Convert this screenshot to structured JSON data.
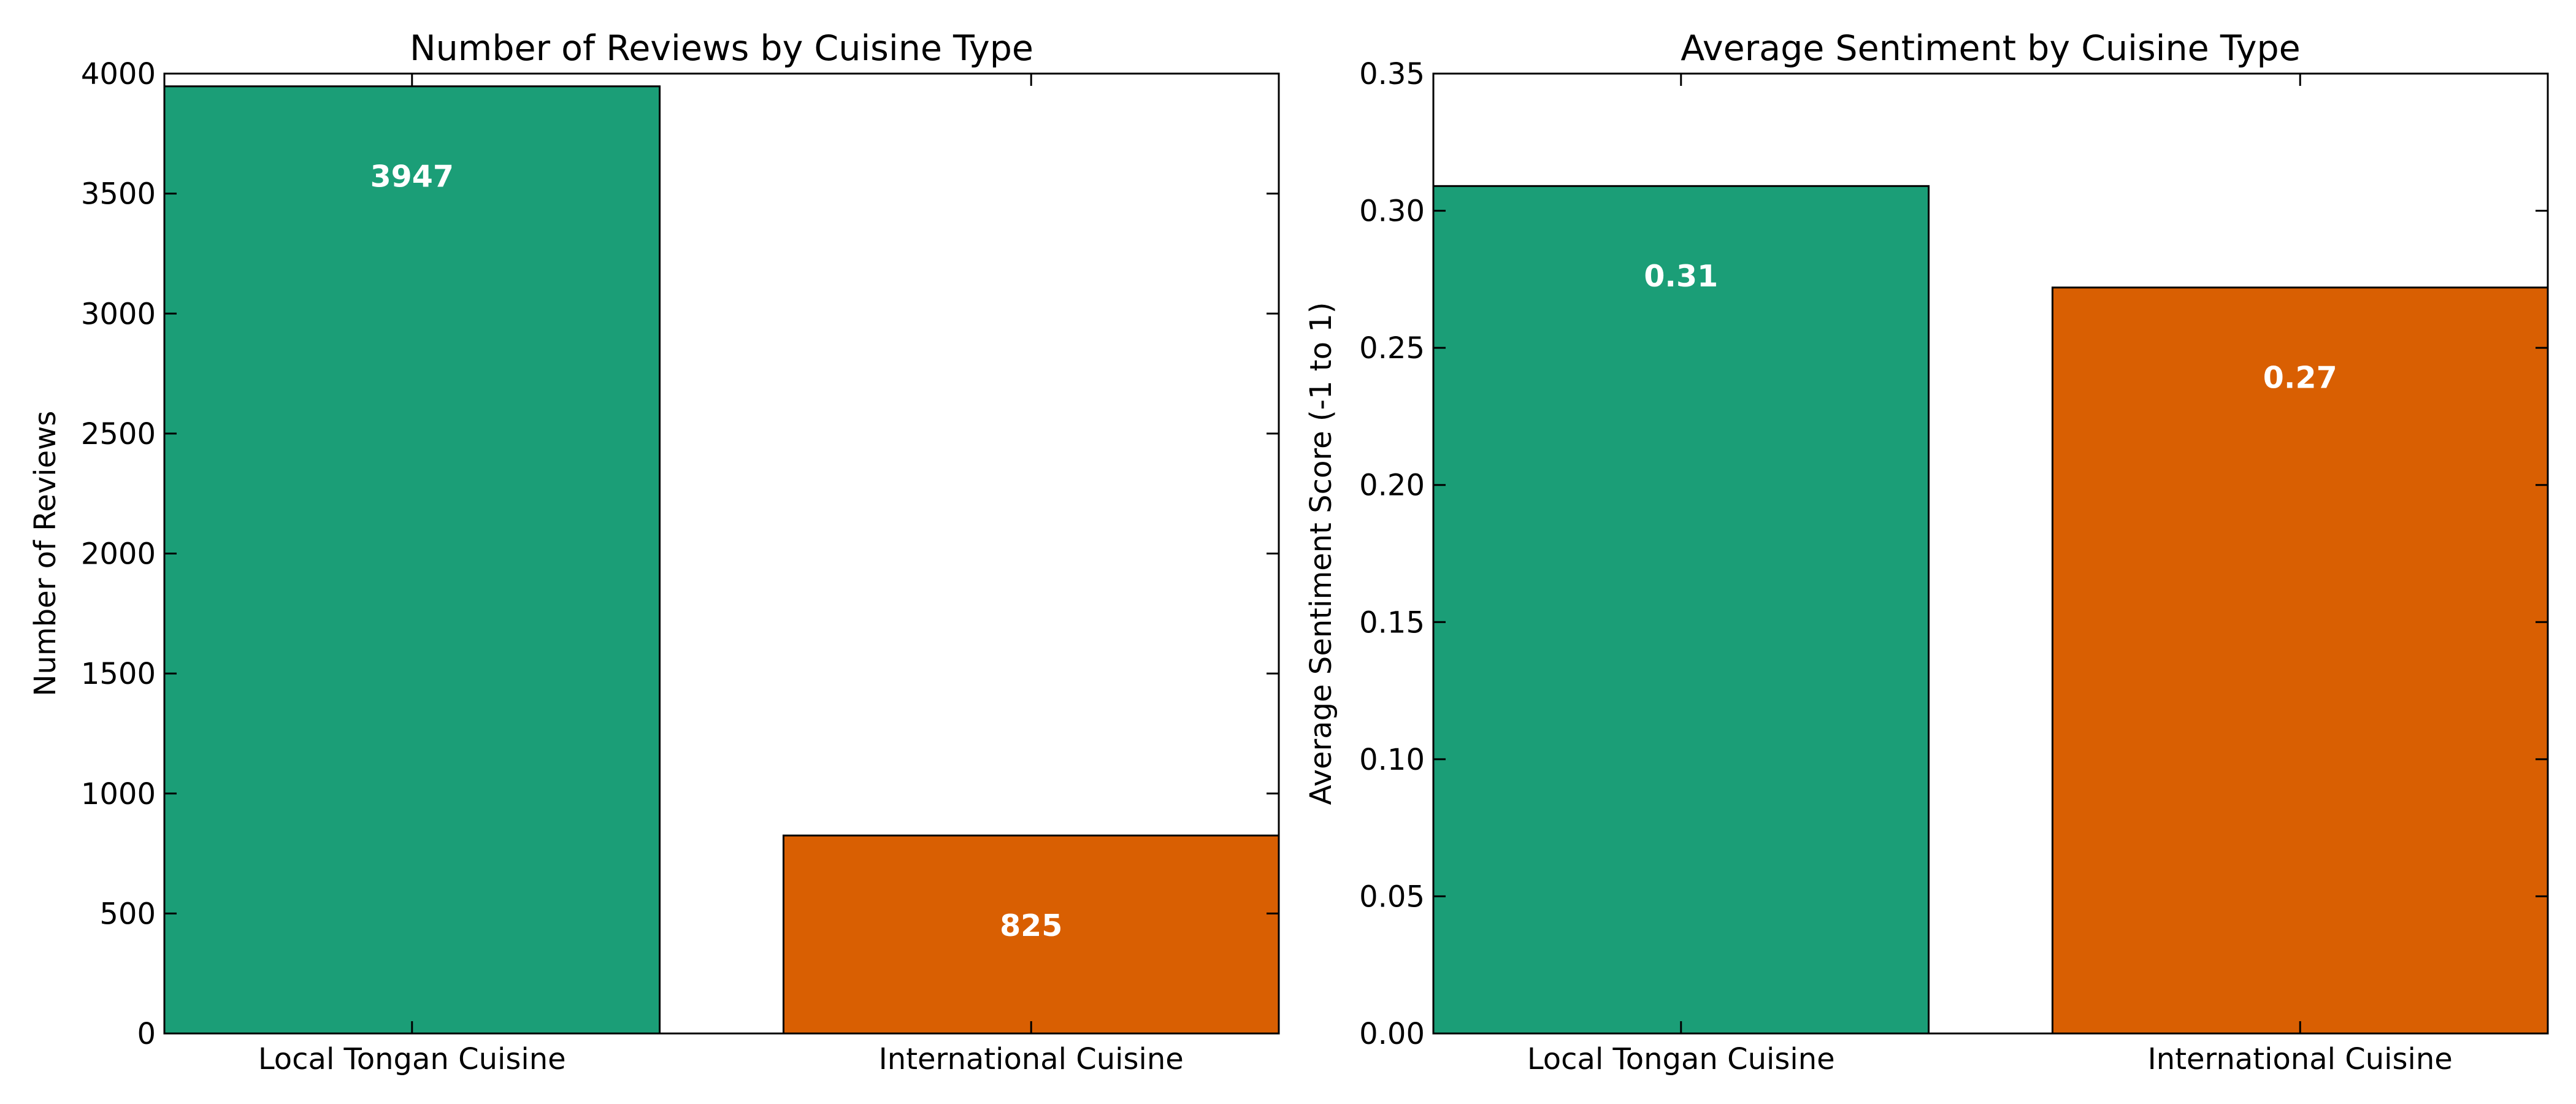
{
  "chart_data": [
    {
      "type": "bar",
      "title": "Number of Reviews by Cuisine Type",
      "xlabel": "",
      "ylabel": "Number of Reviews",
      "categories": [
        "Local Tongan Cuisine",
        "International Cuisine"
      ],
      "values": [
        3947,
        825
      ],
      "value_labels": [
        "3947",
        "825"
      ],
      "colors": [
        "#1b9e77",
        "#d95f02"
      ],
      "ylim": [
        0,
        4000
      ],
      "yticks": [
        0,
        500,
        1000,
        1500,
        2000,
        2500,
        3000,
        3500,
        4000
      ],
      "ytick_labels": [
        "0",
        "500",
        "1000",
        "1500",
        "2000",
        "2500",
        "3000",
        "3500",
        "4000"
      ],
      "grid": false,
      "legend": "none"
    },
    {
      "type": "bar",
      "title": "Average Sentiment by Cuisine Type",
      "xlabel": "",
      "ylabel": "Average Sentiment Score (-1 to 1)",
      "categories": [
        "Local Tongan Cuisine",
        "International Cuisine"
      ],
      "values": [
        0.309,
        0.272
      ],
      "value_labels": [
        "0.31",
        "0.27"
      ],
      "colors": [
        "#1b9e77",
        "#d95f02"
      ],
      "ylim": [
        0,
        0.35
      ],
      "yticks": [
        0,
        0.05,
        0.1,
        0.15,
        0.2,
        0.25,
        0.3,
        0.35
      ],
      "ytick_labels": [
        "0.00",
        "0.05",
        "0.10",
        "0.15",
        "0.20",
        "0.25",
        "0.30",
        "0.35"
      ],
      "grid": false,
      "legend": "none"
    }
  ]
}
